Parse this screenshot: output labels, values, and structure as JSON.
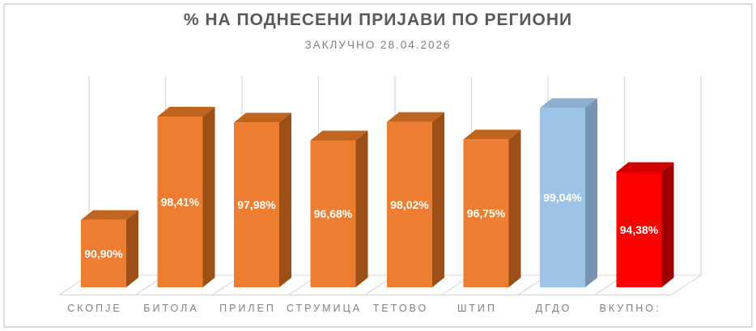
{
  "chart_data": {
    "type": "bar",
    "effect": "3d-column",
    "title": "% НА ПОДНЕСЕНИ ПРИЈАВИ ПО РЕГИОНИ",
    "subtitle": "ЗАКЛУЧНО 28.04.2026",
    "categories": [
      "СКОПЈЕ",
      "БИТОЛА",
      "ПРИЛЕП",
      "СТРУМИЦА",
      "ТЕТОВО",
      "ШТИП",
      "ДГДО",
      "ВКУПНО:"
    ],
    "values": [
      90.9,
      98.41,
      97.98,
      96.68,
      98.02,
      96.75,
      99.04,
      94.38
    ],
    "data_labels": [
      "90,90%",
      "98,41%",
      "97,98%",
      "96,68%",
      "98,02%",
      "96,75%",
      "99,04%",
      "94,38%"
    ],
    "xlabel": "",
    "ylabel": "",
    "ylim": [
      86,
      100
    ],
    "grid": "vertical-back-wall-lines",
    "legend": "none",
    "bar_color_keys": [
      "orange",
      "orange",
      "orange",
      "orange",
      "orange",
      "orange",
      "blue",
      "red"
    ],
    "palette": {
      "orange": {
        "front": "#ED7D31",
        "top": "#C0651F",
        "side": "#9C4F16"
      },
      "blue": {
        "front": "#9DC3E6",
        "top": "#8EAFD0",
        "side": "#7693B3"
      },
      "red": {
        "front": "#FB0101",
        "top": "#CE0000",
        "side": "#9E0000"
      }
    },
    "colors": {
      "title": "#595959",
      "subtitle": "#7F7F7F",
      "data_label": "#FFFFFF",
      "category_label": "#7F7F7F",
      "gridline": "#D9D9D9",
      "frame_border": "#DCDCDC",
      "background": "#FFFFFF"
    }
  }
}
